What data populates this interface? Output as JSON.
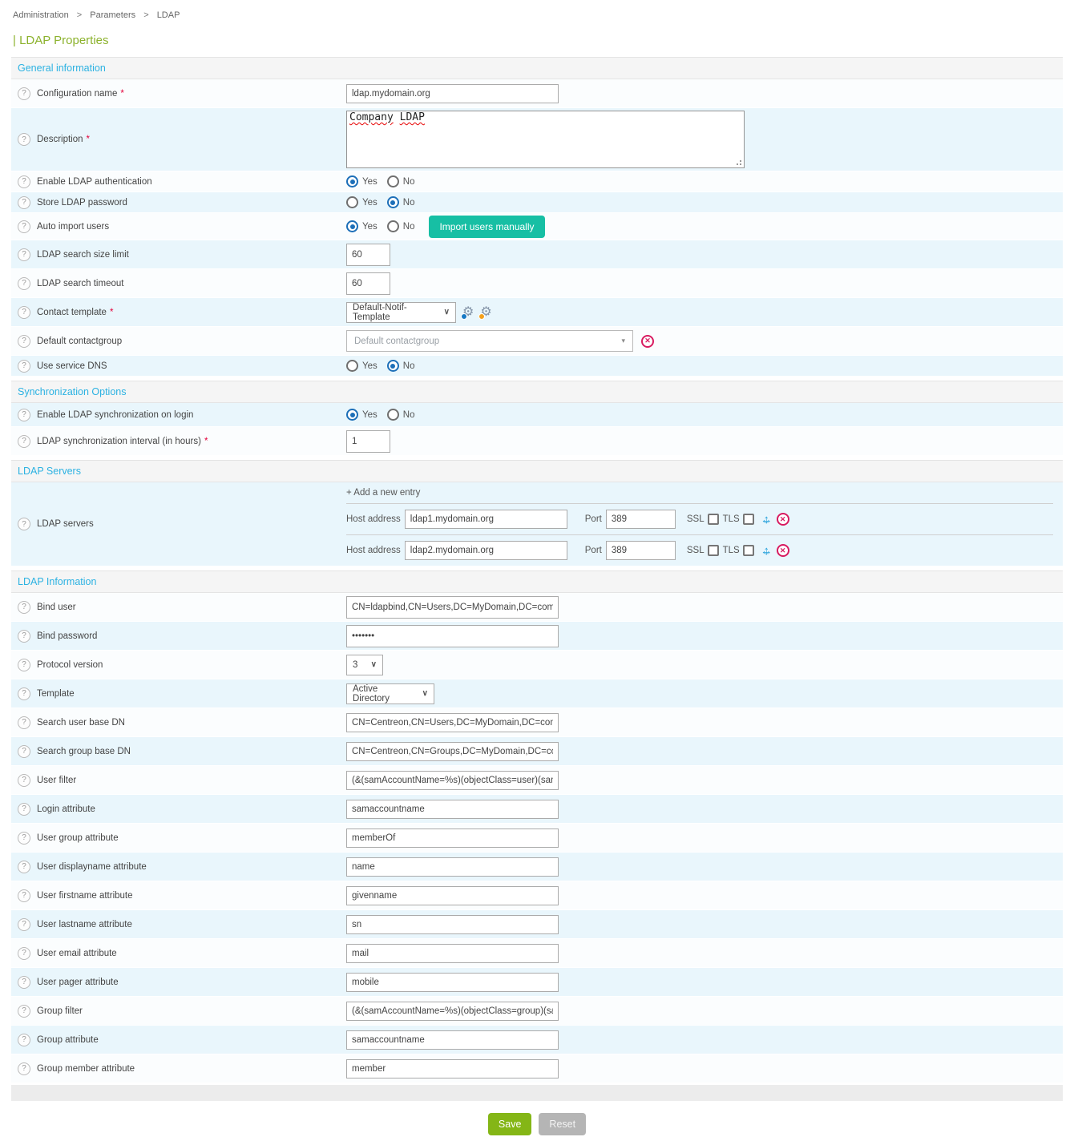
{
  "icons": {
    "help": "?",
    "required": "*",
    "select_chevron": "∨",
    "dropdown_arrow": "▾",
    "move_h": "↔",
    "move_v": "↕",
    "close": "✕",
    "gear": "⚙"
  },
  "breadcrumb": {
    "item1": "Administration",
    "item2": "Parameters",
    "item3": "LDAP",
    "separator": ">"
  },
  "page_title": "| LDAP Properties",
  "radio": {
    "yes": "Yes",
    "no": "No"
  },
  "general": {
    "title": "General information",
    "configuration_name": {
      "label": "Configuration name",
      "value": "ldap.mydomain.org"
    },
    "description": {
      "label": "Description",
      "value": "Company LDAP"
    },
    "enable_ldap_auth": {
      "label": "Enable LDAP authentication",
      "selected": "Yes"
    },
    "store_ldap_password": {
      "label": "Store LDAP password",
      "selected": "No"
    },
    "auto_import_users": {
      "label": "Auto import users",
      "selected": "Yes",
      "button_label": "Import users manually"
    },
    "search_size_limit": {
      "label": "LDAP search size limit",
      "value": "60"
    },
    "search_timeout": {
      "label": "LDAP search timeout",
      "value": "60"
    },
    "contact_template": {
      "label": "Contact template",
      "value": "Default-Notif-Template"
    },
    "default_contactgroup": {
      "label": "Default contactgroup",
      "placeholder": "Default contactgroup"
    },
    "use_service_dns": {
      "label": "Use service DNS",
      "selected": "No"
    }
  },
  "synchronization": {
    "title": "Synchronization Options",
    "enable_sync": {
      "label": "Enable LDAP synchronization on login",
      "selected": "Yes"
    },
    "sync_interval": {
      "label": "LDAP synchronization interval (in hours)",
      "value": "1"
    }
  },
  "ldap_servers": {
    "title": "LDAP Servers",
    "row_label": "LDAP servers",
    "add_entry": "+ Add a new entry",
    "host_label": "Host address",
    "port_label": "Port",
    "ssl_label": "SSL",
    "tls_label": "TLS",
    "servers": [
      {
        "host": "ldap1.mydomain.org",
        "port": "389"
      },
      {
        "host": "ldap2.mydomain.org",
        "port": "389"
      }
    ]
  },
  "ldap_information": {
    "title": "LDAP Information",
    "bind_user": {
      "label": "Bind user",
      "value": "CN=ldapbind,CN=Users,DC=MyDomain,DC=com"
    },
    "bind_password": {
      "label": "Bind password",
      "value": "•••••••"
    },
    "protocol_version": {
      "label": "Protocol version",
      "value": "3"
    },
    "template": {
      "label": "Template",
      "value": "Active Directory"
    },
    "search_user_base_dn": {
      "label": "Search user base DN",
      "value": "CN=Centreon,CN=Users,DC=MyDomain,DC=com"
    },
    "search_group_base_dn": {
      "label": "Search group base DN",
      "value": "CN=Centreon,CN=Groups,DC=MyDomain,DC=com"
    },
    "user_filter": {
      "label": "User filter",
      "value": "(&(samAccountName=%s)(objectClass=user)(samAcc"
    },
    "login_attribute": {
      "label": "Login attribute",
      "value": "samaccountname"
    },
    "user_group_attribute": {
      "label": "User group attribute",
      "value": "memberOf"
    },
    "user_displayname_attribute": {
      "label": "User displayname attribute",
      "value": "name"
    },
    "user_firstname_attribute": {
      "label": "User firstname attribute",
      "value": "givenname"
    },
    "user_lastname_attribute": {
      "label": "User lastname attribute",
      "value": "sn"
    },
    "user_email_attribute": {
      "label": "User email attribute",
      "value": "mail"
    },
    "user_pager_attribute": {
      "label": "User pager attribute",
      "value": "mobile"
    },
    "group_filter": {
      "label": "Group filter",
      "value": "(&(samAccountName=%s)(objectClass=group)(samA"
    },
    "group_attribute": {
      "label": "Group attribute",
      "value": "samaccountname"
    },
    "group_member_attribute": {
      "label": "Group member attribute",
      "value": "member"
    }
  },
  "footer": {
    "save_label": "Save",
    "reset_label": "Reset"
  }
}
